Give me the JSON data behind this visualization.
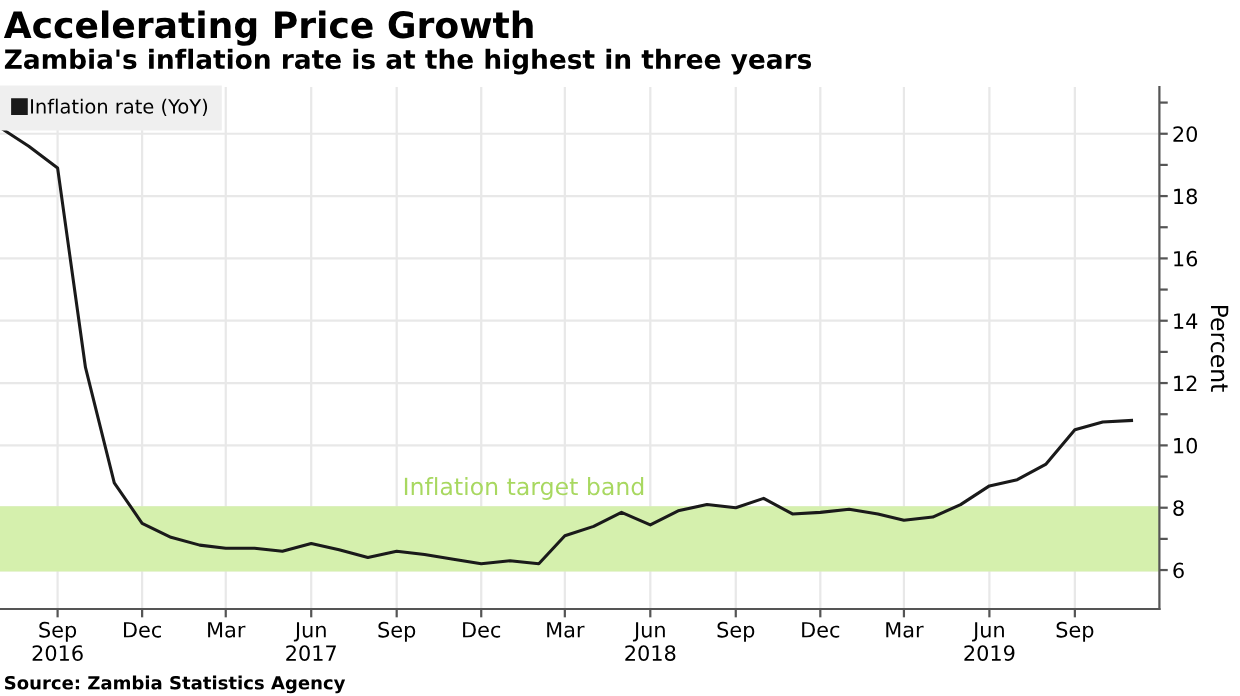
{
  "chart_data": {
    "type": "line",
    "title": "Accelerating Price Growth",
    "subtitle": "Zambia's inflation rate is at the highest in three years",
    "ylabel": "Percent",
    "x": [
      "2016-07",
      "2016-08",
      "2016-09",
      "2016-10",
      "2016-11",
      "2016-12",
      "2017-01",
      "2017-02",
      "2017-03",
      "2017-04",
      "2017-05",
      "2017-06",
      "2017-07",
      "2017-08",
      "2017-09",
      "2017-10",
      "2017-11",
      "2017-12",
      "2018-01",
      "2018-02",
      "2018-03",
      "2018-04",
      "2018-05",
      "2018-06",
      "2018-07",
      "2018-08",
      "2018-09",
      "2018-10",
      "2018-11",
      "2018-12",
      "2019-01",
      "2019-02",
      "2019-03",
      "2019-04",
      "2019-05",
      "2019-06",
      "2019-07",
      "2019-08",
      "2019-09",
      "2019-10",
      "2019-11"
    ],
    "series": [
      {
        "name": "Inflation rate (YoY)",
        "color": "#1a1a1a",
        "values": [
          20.2,
          19.6,
          18.9,
          12.5,
          8.8,
          7.5,
          7.05,
          6.8,
          6.7,
          6.7,
          6.6,
          6.85,
          6.65,
          6.4,
          6.6,
          6.5,
          6.35,
          6.2,
          6.3,
          6.2,
          7.1,
          7.4,
          7.85,
          7.45,
          7.9,
          8.1,
          8.0,
          8.3,
          7.8,
          7.85,
          7.95,
          7.8,
          7.6,
          7.7,
          8.1,
          8.7,
          8.9,
          9.4,
          10.5,
          10.75,
          10.8
        ]
      }
    ],
    "xlim": [
      "2016-07",
      "2019-12"
    ],
    "xticks": [
      {
        "value": "2016-09",
        "label": "Sep\n2016"
      },
      {
        "value": "2016-12",
        "label": "Dec"
      },
      {
        "value": "2017-03",
        "label": "Mar"
      },
      {
        "value": "2017-06",
        "label": "Jun\n2017"
      },
      {
        "value": "2017-09",
        "label": "Sep"
      },
      {
        "value": "2017-12",
        "label": "Dec"
      },
      {
        "value": "2018-03",
        "label": "Mar"
      },
      {
        "value": "2018-06",
        "label": "Jun\n2018"
      },
      {
        "value": "2018-09",
        "label": "Sep"
      },
      {
        "value": "2018-12",
        "label": "Dec"
      },
      {
        "value": "2019-03",
        "label": "Mar"
      },
      {
        "value": "2019-06",
        "label": "Jun\n2019"
      },
      {
        "value": "2019-09",
        "label": "Sep"
      }
    ],
    "ylim": [
      4.75,
      21.5
    ],
    "yticks": [
      6,
      {
        "value": 7,
        "label": null
      },
      8,
      {
        "value": 9,
        "label": null
      },
      10,
      {
        "value": 11,
        "label": null
      },
      12,
      {
        "value": 13,
        "label": null
      },
      14,
      {
        "value": 15,
        "label": null
      },
      16,
      {
        "value": 17,
        "label": null
      },
      18,
      {
        "value": 19,
        "label": null
      },
      20,
      {
        "value": 21,
        "label": null
      }
    ],
    "bands": [
      {
        "axis": "y",
        "from": 6,
        "to": 8,
        "label": "Inflation target band",
        "color": "#d5f0ad"
      }
    ],
    "grid": true,
    "legend": "top left",
    "marker": "none",
    "line_style": "solid",
    "annotations": [
      "Source: Zambia Statistics Agency"
    ]
  }
}
